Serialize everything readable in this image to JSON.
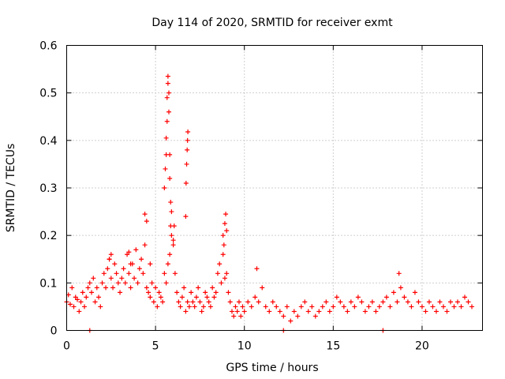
{
  "chart_data": {
    "type": "scatter",
    "title": "Day 114 of 2020, SRMTID for receiver exmt",
    "xlabel": "GPS time / hours",
    "ylabel": "SRMTID / TECUs",
    "xlim": [
      0,
      23.4
    ],
    "ylim": [
      0,
      0.6
    ],
    "xticks": [
      0,
      5,
      10,
      15,
      20
    ],
    "xtick_labels": [
      "0",
      "5",
      "10",
      "15",
      "20"
    ],
    "yticks": [
      0,
      0.1,
      0.2,
      0.3,
      0.4,
      0.5,
      0.6
    ],
    "ytick_labels": [
      "0",
      "0.1",
      "0.2",
      "0.3",
      "0.4",
      "0.5",
      "0.6"
    ],
    "grid": true,
    "marker": "+",
    "series": [
      {
        "name": "SRMTID",
        "color": "#ff0000",
        "x": [
          0.0,
          0.1,
          0.2,
          0.3,
          0.4,
          0.5,
          0.6,
          0.7,
          0.8,
          0.9,
          1.0,
          1.1,
          1.2,
          1.3,
          1.4,
          1.5,
          1.6,
          1.7,
          1.8,
          1.9,
          2.0,
          2.1,
          2.2,
          2.3,
          2.4,
          2.5,
          2.6,
          2.7,
          2.8,
          2.9,
          3.0,
          3.1,
          3.2,
          3.3,
          3.4,
          3.5,
          3.6,
          3.7,
          3.8,
          3.9,
          4.0,
          4.1,
          4.2,
          4.3,
          4.4,
          4.5,
          4.6,
          4.7,
          4.8,
          4.9,
          5.0,
          5.1,
          5.2,
          5.3,
          5.4,
          5.5,
          5.6,
          5.7,
          5.8,
          5.9,
          6.0,
          6.1,
          6.2,
          6.3,
          6.4,
          6.5,
          6.6,
          6.7,
          6.8,
          6.9,
          7.0,
          7.1,
          7.2,
          7.3,
          7.4,
          7.5,
          7.6,
          7.7,
          7.8,
          7.9,
          8.0,
          8.1,
          8.2,
          8.3,
          8.4,
          8.5,
          8.6,
          8.7,
          8.8,
          8.9,
          9.0,
          9.1,
          9.2,
          9.3,
          9.4,
          9.5,
          9.6,
          9.7,
          9.8,
          9.9,
          10.0,
          10.2,
          10.4,
          10.6,
          10.8,
          11.0,
          11.2,
          11.4,
          11.6,
          11.8,
          12.0,
          12.2,
          12.4,
          12.6,
          12.8,
          13.0,
          13.2,
          13.4,
          13.6,
          13.8,
          14.0,
          14.2,
          14.4,
          14.6,
          14.8,
          15.0,
          15.2,
          15.4,
          15.6,
          15.8,
          16.0,
          16.2,
          16.4,
          16.6,
          16.8,
          17.0,
          17.2,
          17.4,
          17.6,
          17.8,
          18.0,
          18.2,
          18.4,
          18.6,
          18.8,
          19.0,
          19.2,
          19.4,
          19.6,
          19.8,
          20.0,
          20.2,
          20.4,
          20.6,
          20.8,
          21.0,
          21.2,
          21.4,
          21.6,
          21.8,
          22.0,
          22.2,
          22.4,
          22.6,
          22.8,
          1.3,
          4.4,
          4.5,
          5.5,
          5.55,
          5.6,
          5.6,
          5.65,
          5.65,
          5.7,
          5.7,
          5.75,
          5.75,
          5.8,
          5.8,
          5.85,
          5.85,
          5.9,
          6.0,
          6.05,
          6.7,
          6.72,
          6.75,
          6.78,
          6.8,
          6.82,
          8.8,
          8.85,
          8.9,
          8.95,
          9.0,
          12.2,
          17.8,
          10.7,
          18.7,
          3.5,
          3.6,
          2.4,
          2.5,
          4.7
        ],
        "y": [
          0.06,
          0.075,
          0.055,
          0.09,
          0.05,
          0.07,
          0.065,
          0.04,
          0.06,
          0.08,
          0.05,
          0.07,
          0.09,
          0.1,
          0.08,
          0.11,
          0.06,
          0.09,
          0.07,
          0.05,
          0.1,
          0.12,
          0.09,
          0.13,
          0.15,
          0.11,
          0.09,
          0.14,
          0.12,
          0.1,
          0.08,
          0.11,
          0.13,
          0.1,
          0.16,
          0.12,
          0.09,
          0.14,
          0.11,
          0.17,
          0.1,
          0.13,
          0.15,
          0.12,
          0.18,
          0.09,
          0.08,
          0.07,
          0.1,
          0.06,
          0.09,
          0.05,
          0.08,
          0.07,
          0.06,
          0.12,
          0.1,
          0.14,
          0.16,
          0.2,
          0.18,
          0.12,
          0.08,
          0.06,
          0.05,
          0.07,
          0.09,
          0.04,
          0.06,
          0.05,
          0.08,
          0.06,
          0.05,
          0.07,
          0.09,
          0.06,
          0.04,
          0.05,
          0.08,
          0.07,
          0.06,
          0.05,
          0.09,
          0.07,
          0.08,
          0.12,
          0.14,
          0.1,
          0.16,
          0.11,
          0.12,
          0.08,
          0.06,
          0.04,
          0.03,
          0.05,
          0.04,
          0.06,
          0.03,
          0.05,
          0.04,
          0.06,
          0.05,
          0.07,
          0.06,
          0.09,
          0.05,
          0.04,
          0.06,
          0.05,
          0.04,
          0.03,
          0.05,
          0.02,
          0.04,
          0.03,
          0.05,
          0.06,
          0.04,
          0.05,
          0.03,
          0.04,
          0.05,
          0.06,
          0.04,
          0.05,
          0.07,
          0.06,
          0.05,
          0.04,
          0.06,
          0.05,
          0.07,
          0.06,
          0.04,
          0.05,
          0.06,
          0.04,
          0.05,
          0.06,
          0.07,
          0.05,
          0.08,
          0.06,
          0.09,
          0.07,
          0.06,
          0.05,
          0.08,
          0.06,
          0.05,
          0.04,
          0.06,
          0.05,
          0.04,
          0.06,
          0.05,
          0.04,
          0.06,
          0.05,
          0.06,
          0.05,
          0.07,
          0.06,
          0.05,
          0.0,
          0.245,
          0.23,
          0.3,
          0.34,
          0.37,
          0.405,
          0.44,
          0.49,
          0.52,
          0.535,
          0.5,
          0.46,
          0.37,
          0.32,
          0.27,
          0.22,
          0.25,
          0.19,
          0.22,
          0.24,
          0.31,
          0.35,
          0.38,
          0.4,
          0.418,
          0.2,
          0.18,
          0.225,
          0.245,
          0.21,
          0.0,
          0.0,
          0.13,
          0.12,
          0.165,
          0.14,
          0.15,
          0.16,
          0.14
        ]
      }
    ]
  }
}
